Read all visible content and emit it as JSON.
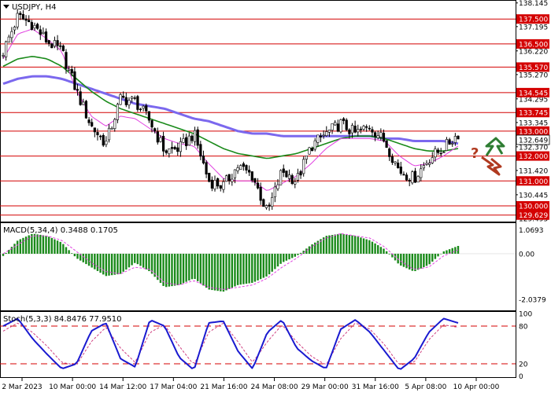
{
  "colors": {
    "background": "#ffffff",
    "frame": "#000000",
    "level_line": "#d40000",
    "level_label_bg": "#d40000",
    "level_label_text": "#ffffff",
    "candle_up": "#ffffff",
    "candle_down": "#000000",
    "ma_fast": "#e040e0",
    "ma_mid": "#1a8a1a",
    "ma_slow": "#7b68ee",
    "macd_hist": "#1a8a1a",
    "macd_signal": "#e040e0",
    "stoch_main": "#1a1ad0",
    "stoch_signal": "#d04080",
    "stoch_level": "#d40000",
    "arrow_up": "#2e7d32",
    "arrow_down": "#b03a20",
    "question": "#b03a20"
  },
  "chart_data": [
    {
      "type": "candlestick",
      "title": "USDJPY, H4",
      "ylim": [
        129.4,
        138.2
      ],
      "y_ticks": [
        "138.145",
        "137.195",
        "136.220",
        "135.270",
        "134.295",
        "133.345",
        "132.370",
        "131.420",
        "130.445",
        "129.495"
      ],
      "x_ticks": [
        "2 Mar 2023",
        "10 Mar 00:00",
        "14 Mar 12:00",
        "17 Mar 04:00",
        "21 Mar 16:00",
        "24 Mar 08:00",
        "29 Mar 00:00",
        "31 Mar 16:00",
        "5 Apr 08:00",
        "10 Apr 00:00"
      ],
      "levels": [
        {
          "value": 137.5,
          "label": "137.500"
        },
        {
          "value": 136.5,
          "label": "136.500"
        },
        {
          "value": 135.57,
          "label": "135.570"
        },
        {
          "value": 134.545,
          "label": "134.545"
        },
        {
          "value": 133.745,
          "label": "133.745"
        },
        {
          "value": 133.0,
          "label": "133.000"
        },
        {
          "value": 132.0,
          "label": "132.000"
        },
        {
          "value": 131.0,
          "label": "131.000"
        },
        {
          "value": 130.0,
          "label": "130.000"
        },
        {
          "value": 129.629,
          "label": "129.629"
        }
      ],
      "current_price": "132.649",
      "close_anchors": [
        136.2,
        137.6,
        137.3,
        136.6,
        136.2,
        134.6,
        133.2,
        132.5,
        134.3,
        134.2,
        133.4,
        132.2,
        132.3,
        132.9,
        131.0,
        130.8,
        131.6,
        131.2,
        129.7,
        131.4,
        131.0,
        132.4,
        132.9,
        133.3,
        132.9,
        133.2,
        132.6,
        131.4,
        131.1,
        131.9,
        132.3,
        132.9
      ],
      "ma_fast": [
        135.9,
        136.9,
        137.1,
        136.7,
        136.2,
        134.6,
        133.6,
        133.2,
        133.6,
        133.5,
        133.1,
        132.7,
        132.5,
        132.4,
        131.7,
        131.1,
        131.0,
        131.0,
        130.6,
        130.9,
        131.2,
        131.7,
        132.3,
        132.7,
        132.7,
        132.7,
        132.6,
        132.0,
        131.6,
        131.7,
        132.0,
        132.4
      ],
      "ma_mid": [
        135.6,
        135.9,
        136.0,
        135.9,
        135.6,
        135.1,
        134.6,
        134.2,
        133.9,
        133.7,
        133.5,
        133.3,
        133.1,
        132.9,
        132.6,
        132.3,
        132.1,
        132.0,
        131.9,
        132.0,
        132.1,
        132.3,
        132.5,
        132.7,
        132.8,
        132.8,
        132.7,
        132.5,
        132.3,
        132.2,
        132.2,
        132.3
      ],
      "ma_slow": [
        134.9,
        135.1,
        135.2,
        135.2,
        135.1,
        134.9,
        134.7,
        134.5,
        134.3,
        134.1,
        134.0,
        133.9,
        133.7,
        133.5,
        133.4,
        133.2,
        133.0,
        132.9,
        132.9,
        132.8,
        132.8,
        132.8,
        132.8,
        132.8,
        132.8,
        132.8,
        132.7,
        132.7,
        132.6,
        132.6,
        132.6,
        132.5
      ]
    },
    {
      "type": "bar",
      "title": "MACD(5,34,4) 0.3488 0.1705",
      "ylim": [
        -2.5,
        1.3
      ],
      "y_ticks": [
        "1.0693",
        "0.00",
        "-2.0379"
      ],
      "series": [
        {
          "name": "MACD(5,34,4)",
          "values": [
            -0.1,
            0.6,
            0.9,
            0.8,
            0.5,
            -0.2,
            -0.6,
            -1.0,
            -0.9,
            -0.4,
            -0.8,
            -1.5,
            -1.4,
            -1.1,
            -1.6,
            -1.7,
            -1.4,
            -1.3,
            -1.0,
            -0.4,
            -0.1,
            0.4,
            0.8,
            0.9,
            0.8,
            0.6,
            0.2,
            -0.5,
            -0.8,
            -0.5,
            0.1,
            0.35
          ]
        },
        {
          "name": "Signal",
          "values": [
            0.0,
            0.4,
            0.8,
            0.8,
            0.6,
            0.1,
            -0.4,
            -0.8,
            -0.9,
            -0.6,
            -0.7,
            -1.3,
            -1.4,
            -1.2,
            -1.5,
            -1.6,
            -1.5,
            -1.4,
            -1.1,
            -0.6,
            -0.2,
            0.3,
            0.7,
            0.9,
            0.8,
            0.7,
            0.3,
            -0.3,
            -0.7,
            -0.6,
            -0.1,
            0.17
          ]
        }
      ]
    },
    {
      "type": "line",
      "title": "Stoch(5,3,3) 84.8476 77.9510",
      "ylim": [
        0,
        100
      ],
      "y_ticks": [
        "100",
        "80",
        "20",
        "0"
      ],
      "levels": [
        80,
        20
      ],
      "series": [
        {
          "name": "Stoch(5,3,3)",
          "values": [
            80,
            92,
            60,
            35,
            12,
            20,
            72,
            85,
            28,
            15,
            90,
            80,
            30,
            10,
            85,
            88,
            40,
            12,
            70,
            90,
            45,
            25,
            12,
            75,
            90,
            70,
            40,
            10,
            28,
            70,
            92,
            85
          ]
        },
        {
          "name": "Signal",
          "values": [
            72,
            85,
            70,
            48,
            22,
            18,
            55,
            78,
            45,
            22,
            70,
            82,
            48,
            18,
            70,
            85,
            55,
            22,
            55,
            82,
            55,
            32,
            18,
            60,
            85,
            75,
            50,
            18,
            22,
            58,
            82,
            78
          ]
        }
      ]
    }
  ]
}
